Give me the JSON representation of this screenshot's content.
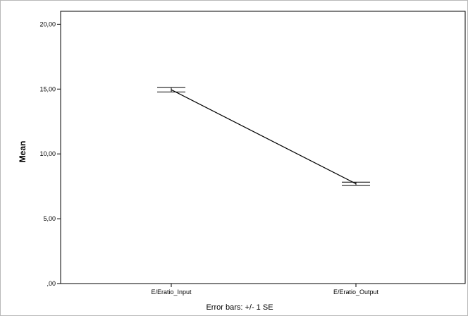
{
  "chart_data": {
    "type": "line",
    "title": "",
    "xlabel": "",
    "ylabel": "Mean",
    "categories": [
      "E/Eratio_Input",
      "E/Eratio_Output"
    ],
    "series": [
      {
        "values": [
          14.95,
          7.7
        ],
        "errors": [
          0.17,
          0.12
        ],
        "color": "#000000"
      }
    ],
    "ylim": [
      0,
      21
    ],
    "yticks": [
      0,
      5,
      10,
      15,
      20
    ],
    "ytick_labels": [
      ",00",
      "5,00",
      "10,00",
      "15,00",
      "20,00"
    ],
    "grid": false,
    "note": "Error bars: +/- 1 SE"
  }
}
